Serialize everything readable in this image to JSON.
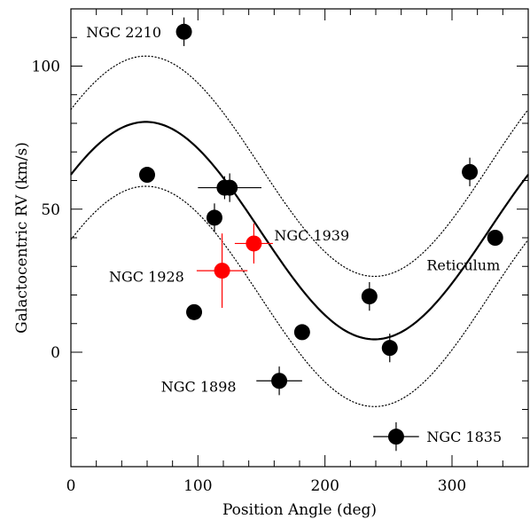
{
  "chart_data": {
    "type": "scatter",
    "title": "",
    "xlabel": "Position Angle (deg)",
    "ylabel": "Galactocentric RV (km/s)",
    "xlim": [
      0,
      360
    ],
    "ylim": [
      -40,
      120
    ],
    "x_ticks": [
      0,
      100,
      200,
      300
    ],
    "y_ticks": [
      0,
      50,
      100
    ],
    "x_tick_labels": [
      "0",
      "100",
      "200",
      "300"
    ],
    "y_tick_labels": [
      "0",
      "50",
      "100"
    ],
    "grid": false,
    "legend": "none",
    "colors": {
      "black_points": "#000000",
      "red_points": "#ff0000",
      "model": "#000000"
    },
    "model_curve": {
      "style": "solid",
      "form": "sinusoid",
      "mean": 42.5,
      "amplitude": 38,
      "peak_x": 59
    },
    "envelope_curves": [
      {
        "style": "dotted",
        "form": "sinusoid",
        "mean": 65,
        "amplitude": 38.5,
        "peak_x": 59
      },
      {
        "style": "dotted",
        "form": "sinusoid",
        "mean": 19.5,
        "amplitude": 38.5,
        "peak_x": 59
      }
    ],
    "series": [
      {
        "color": "#000000",
        "points": [
          {
            "x": 89,
            "y": 112,
            "xerr": 0,
            "yerr": 5
          },
          {
            "x": 60,
            "y": 62,
            "xerr": 0,
            "yerr": 0
          },
          {
            "x": 121,
            "y": 57.5,
            "xerr": 0,
            "yerr": 4
          },
          {
            "x": 125,
            "y": 57.5,
            "xerr": 25,
            "yerr": 5
          },
          {
            "x": 113,
            "y": 47,
            "xerr": 0,
            "yerr": 5
          },
          {
            "x": 97,
            "y": 14,
            "xerr": 0,
            "yerr": 0
          },
          {
            "x": 182,
            "y": 7,
            "xerr": 0,
            "yerr": 0
          },
          {
            "x": 164,
            "y": -10,
            "xerr": 18,
            "yerr": 5
          },
          {
            "x": 235,
            "y": 19.5,
            "xerr": 0,
            "yerr": 5
          },
          {
            "x": 251,
            "y": 1.5,
            "xerr": 0,
            "yerr": 5
          },
          {
            "x": 256,
            "y": -29.5,
            "xerr": 18,
            "yerr": 5
          },
          {
            "x": 314,
            "y": 63,
            "xerr": 0,
            "yerr": 5
          },
          {
            "x": 334,
            "y": 40,
            "xerr": 0,
            "yerr": 0
          }
        ]
      },
      {
        "color": "#ff0000",
        "points": [
          {
            "x": 119,
            "y": 28.5,
            "xerr": 20,
            "yerr": 13
          },
          {
            "x": 144,
            "y": 38,
            "xerr": 15,
            "yerr": 7
          }
        ]
      }
    ],
    "annotations": [
      {
        "text": "NGC 2210",
        "x": 12,
        "y": 112
      },
      {
        "text": "NGC 1939",
        "x": 160,
        "y": 41
      },
      {
        "text": "NGC 1928",
        "x": 30,
        "y": 26.5
      },
      {
        "text": "Reticulum",
        "x": 280,
        "y": 30.5
      },
      {
        "text": "NGC 1898",
        "x": 71,
        "y": -12
      },
      {
        "text": "NGC 1835",
        "x": 280,
        "y": -29.5
      }
    ]
  }
}
